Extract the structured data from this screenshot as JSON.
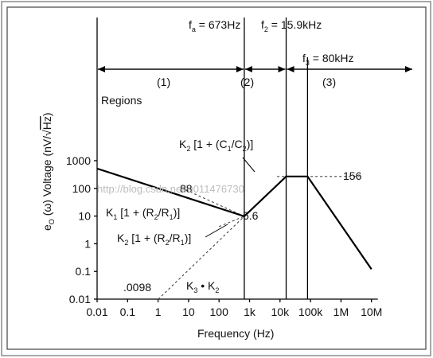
{
  "chart_data": {
    "type": "line",
    "xscale": "log",
    "yscale": "log",
    "xlim": [
      0.01,
      10000000
    ],
    "ylim": [
      0.01,
      1000
    ],
    "xlabel": "Frequency (Hz)",
    "ylabel_parts": [
      "e",
      "O",
      " (ω) Voltage (nV/√",
      "Hz",
      ")"
    ],
    "xticks": [
      {
        "v": 0.01,
        "label": "0.01"
      },
      {
        "v": 0.1,
        "label": "0.1"
      },
      {
        "v": 1,
        "label": "1"
      },
      {
        "v": 10,
        "label": "10"
      },
      {
        "v": 100,
        "label": "100"
      },
      {
        "v": 1000,
        "label": "1k"
      },
      {
        "v": 10000,
        "label": "10k"
      },
      {
        "v": 100000,
        "label": "100k"
      },
      {
        "v": 1000000,
        "label": "1M"
      },
      {
        "v": 10000000,
        "label": "10M"
      }
    ],
    "yticks": [
      {
        "v": 0.01,
        "label": "0.01"
      },
      {
        "v": 0.1,
        "label": "0.1"
      },
      {
        "v": 1,
        "label": "1"
      },
      {
        "v": 10,
        "label": "10"
      },
      {
        "v": 100,
        "label": "100"
      },
      {
        "v": 1000,
        "label": "1000"
      }
    ],
    "series": [
      {
        "role": "noise-curve",
        "style": "solid",
        "points": [
          [
            0.01,
            520
          ],
          [
            673,
            9.8
          ],
          [
            15900,
            270
          ],
          [
            80000,
            270
          ],
          [
            10000000,
            0.12
          ]
        ]
      },
      {
        "role": "k3-k2-extension",
        "style": "dashed",
        "points": [
          [
            1,
            0.0098
          ],
          [
            673,
            9.8
          ]
        ]
      },
      {
        "role": "k1-extension",
        "style": "dashed",
        "points": [
          [
            8,
            88
          ],
          [
            673,
            9.8
          ]
        ]
      },
      {
        "role": "k2-extension",
        "style": "dashed",
        "points": [
          [
            100,
            4.2
          ],
          [
            673,
            9.8
          ],
          [
            15900,
            270
          ]
        ]
      },
      {
        "role": "plateau-extension",
        "style": "dashed",
        "points": [
          [
            8000,
            270
          ],
          [
            4000000,
            270
          ]
        ]
      }
    ],
    "markers": [
      {
        "f": 673,
        "label": "f",
        "sub": "a",
        "rest": " = 673Hz"
      },
      {
        "f": 15900,
        "label": "f",
        "sub": "2",
        "rest": " = 15.9kHz"
      },
      {
        "f": 80000,
        "label": "f",
        "sub": "3",
        "rest": " = 80kHz"
      }
    ],
    "regions": [
      "(1)",
      "(2)",
      "(3)"
    ],
    "regions_label": "Regions",
    "value_labels": [
      "88",
      "6.6",
      "156",
      ".0098"
    ],
    "annotations": {
      "k1": [
        "K",
        "1",
        " [1 + (R",
        "2",
        "/R",
        "1",
        ")]"
      ],
      "k2_low": [
        "K",
        "2",
        " [1 + (R",
        "2",
        "/R",
        "1",
        ")]"
      ],
      "k2_high": [
        "K",
        "2",
        " [1 + (C",
        "1",
        "/C",
        "2",
        ")]"
      ],
      "k3k2": [
        "K",
        "3",
        " • K",
        "2"
      ]
    },
    "watermark": "http://blog.csdn.net/u011476730",
    "grid": false,
    "legend": "none"
  }
}
